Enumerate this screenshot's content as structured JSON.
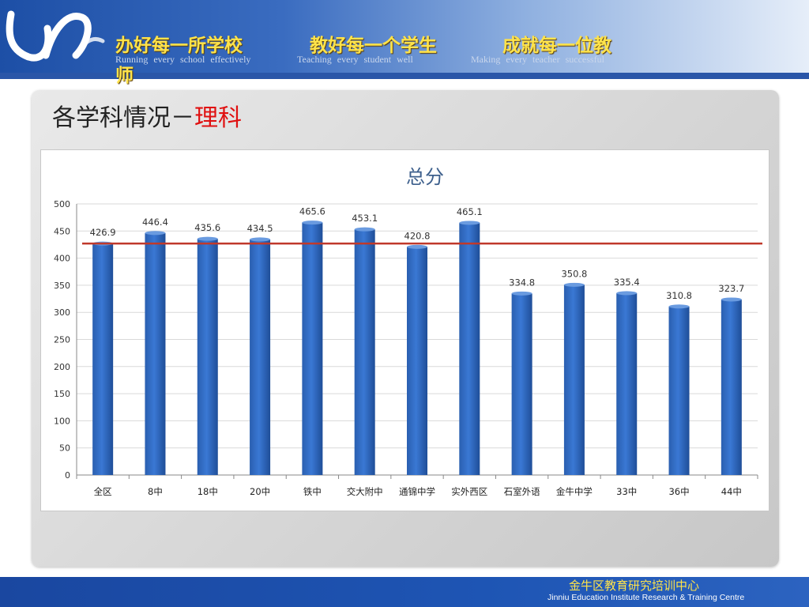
{
  "header": {
    "slogans": [
      "办好每一所学校",
      "教好每一个学生",
      "成就每一位教"
    ],
    "slogan_wrap": "师",
    "slogans_en": [
      "Running every school effectively",
      "Teaching every student well",
      "Making every teacher successful"
    ]
  },
  "page": {
    "title_prefix": "各学科情况－",
    "title_highlight": "理科"
  },
  "footer": {
    "org_cn": "金牛区教育研究培训中心",
    "org_en": "Jinniu Education Institute Research & Training Centre"
  },
  "chart_data": {
    "type": "bar",
    "title": "总分",
    "categories": [
      "全区",
      "8中",
      "18中",
      "20中",
      "铁中",
      "交大附中",
      "通锦中学",
      "实外西区",
      "石室外语",
      "金牛中学",
      "33中",
      "36中",
      "44中"
    ],
    "values": [
      426.9,
      446.4,
      435.6,
      434.5,
      465.6,
      453.1,
      420.8,
      465.1,
      334.8,
      350.8,
      335.4,
      310.8,
      323.7
    ],
    "value_labels": [
      "426.9",
      "446.4",
      "435.6",
      "434.5",
      "465.6",
      "453.1",
      "420.8",
      "465.1",
      "334.8",
      "350.8",
      "335.4",
      "310.8",
      "323.7"
    ],
    "ylim": [
      0,
      500
    ],
    "yticks": [
      0,
      50,
      100,
      150,
      200,
      250,
      300,
      350,
      400,
      450,
      500
    ],
    "reference_line": 426.9,
    "grid": true,
    "bar_color": "#3a78d4",
    "reference_line_color": "#c0392b"
  }
}
